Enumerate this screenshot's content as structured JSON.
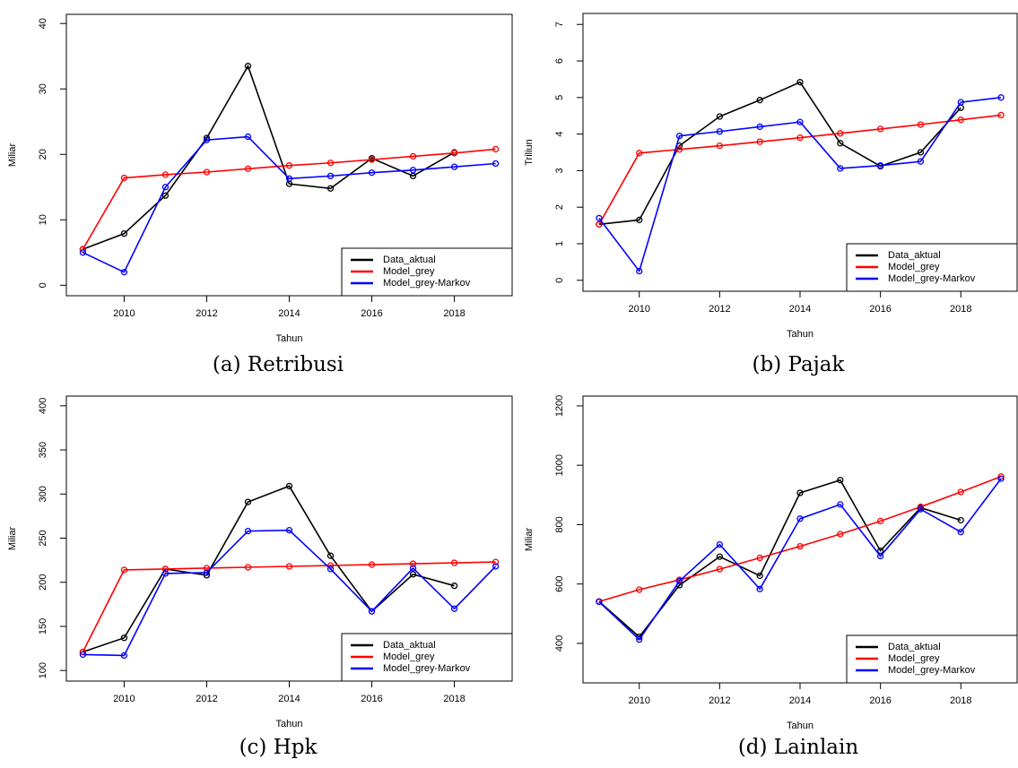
{
  "chart_data": [
    {
      "type": "line",
      "caption": "(a) Retribusi",
      "x_label": "Tahun",
      "y_label": "Miliar",
      "x": [
        2009,
        2010,
        2011,
        2012,
        2013,
        2014,
        2015,
        2016,
        2017,
        2018,
        2019
      ],
      "xlim": [
        2008.6,
        2019.4
      ],
      "xticks": [
        2010,
        2012,
        2014,
        2016,
        2018
      ],
      "ylim": [
        -1.6,
        41.4
      ],
      "yticks": [
        0,
        10,
        20,
        30,
        40
      ],
      "legend": "bottomright",
      "series": [
        {
          "name": "Data_aktual",
          "color": "#000000",
          "values": [
            5.5,
            7.9,
            13.7,
            22.5,
            33.5,
            15.5,
            14.8,
            19.4,
            16.7,
            20.3,
            null
          ]
        },
        {
          "name": "Model_grey",
          "color": "#ff0000",
          "values": [
            5.5,
            16.4,
            16.9,
            17.3,
            17.8,
            18.3,
            18.7,
            19.2,
            19.7,
            20.2,
            20.8
          ]
        },
        {
          "name": "Model_grey-Markov",
          "color": "#0000ff",
          "values": [
            5.0,
            2.0,
            15.0,
            22.2,
            22.7,
            16.3,
            16.7,
            17.2,
            17.6,
            18.1,
            18.6
          ]
        }
      ]
    },
    {
      "type": "line",
      "caption": "(b) Pajak",
      "x_label": "Tahun",
      "y_label": "Triliun",
      "x": [
        2009,
        2010,
        2011,
        2012,
        2013,
        2014,
        2015,
        2016,
        2017,
        2018,
        2019
      ],
      "xlim": [
        2008.6,
        2019.4
      ],
      "xticks": [
        2010,
        2012,
        2014,
        2016,
        2018
      ],
      "ylim": [
        -0.3,
        7.3
      ],
      "yticks": [
        0,
        1,
        2,
        3,
        4,
        5,
        6,
        7
      ],
      "legend": "bottomright",
      "series": [
        {
          "name": "Data_aktual",
          "color": "#000000",
          "values": [
            1.53,
            1.65,
            3.68,
            4.48,
            4.93,
            5.42,
            3.75,
            3.12,
            3.5,
            4.72,
            null
          ]
        },
        {
          "name": "Model_grey",
          "color": "#ff0000",
          "values": [
            1.53,
            3.48,
            3.58,
            3.68,
            3.79,
            3.9,
            4.02,
            4.14,
            4.26,
            4.39,
            4.52
          ]
        },
        {
          "name": "Model_grey-Markov",
          "color": "#0000ff",
          "values": [
            1.7,
            0.25,
            3.95,
            4.07,
            4.2,
            4.33,
            3.06,
            3.14,
            3.25,
            4.87,
            5.0
          ]
        }
      ]
    },
    {
      "type": "line",
      "caption": "(c) Hpk",
      "x_label": "Tahun",
      "y_label": "Miliar",
      "x": [
        2009,
        2010,
        2011,
        2012,
        2013,
        2014,
        2015,
        2016,
        2017,
        2018,
        2019
      ],
      "xlim": [
        2008.6,
        2019.4
      ],
      "xticks": [
        2010,
        2012,
        2014,
        2016,
        2018
      ],
      "ylim": [
        88,
        411
      ],
      "yticks": [
        100,
        150,
        200,
        250,
        300,
        350,
        400
      ],
      "legend": "bottomright",
      "series": [
        {
          "name": "Data_aktual",
          "color": "#000000",
          "values": [
            121,
            137,
            215,
            208,
            291,
            309,
            230,
            167,
            209,
            196,
            null
          ]
        },
        {
          "name": "Model_grey",
          "color": "#ff0000",
          "values": [
            121,
            214,
            215,
            216,
            217,
            218,
            219,
            220,
            221,
            222,
            223
          ]
        },
        {
          "name": "Model_grey-Markov",
          "color": "#0000ff",
          "values": [
            118,
            117,
            210,
            211,
            258,
            259,
            215,
            167,
            216,
            170,
            218
          ]
        }
      ]
    },
    {
      "type": "line",
      "caption": "(d) Lainlain",
      "x_label": "Tahun",
      "y_label": "Miliar",
      "x": [
        2009,
        2010,
        2011,
        2012,
        2013,
        2014,
        2015,
        2016,
        2017,
        2018,
        2019
      ],
      "xlim": [
        2008.6,
        2019.4
      ],
      "xticks": [
        2010,
        2012,
        2014,
        2016,
        2018
      ],
      "ylim": [
        267,
        1233
      ],
      "yticks": [
        400,
        600,
        800,
        1000,
        1200
      ],
      "legend": "bottomright",
      "series": [
        {
          "name": "Data_aktual",
          "color": "#000000",
          "values": [
            541,
            422,
            596,
            692,
            628,
            907,
            950,
            712,
            857,
            815,
            null
          ]
        },
        {
          "name": "Model_grey",
          "color": "#ff0000",
          "values": [
            541,
            581,
            614,
            650,
            688,
            727,
            768,
            812,
            860,
            910,
            962
          ]
        },
        {
          "name": "Model_grey-Markov",
          "color": "#0000ff",
          "values": [
            540,
            413,
            610,
            733,
            583,
            820,
            868,
            694,
            852,
            775,
            955
          ]
        }
      ]
    }
  ]
}
